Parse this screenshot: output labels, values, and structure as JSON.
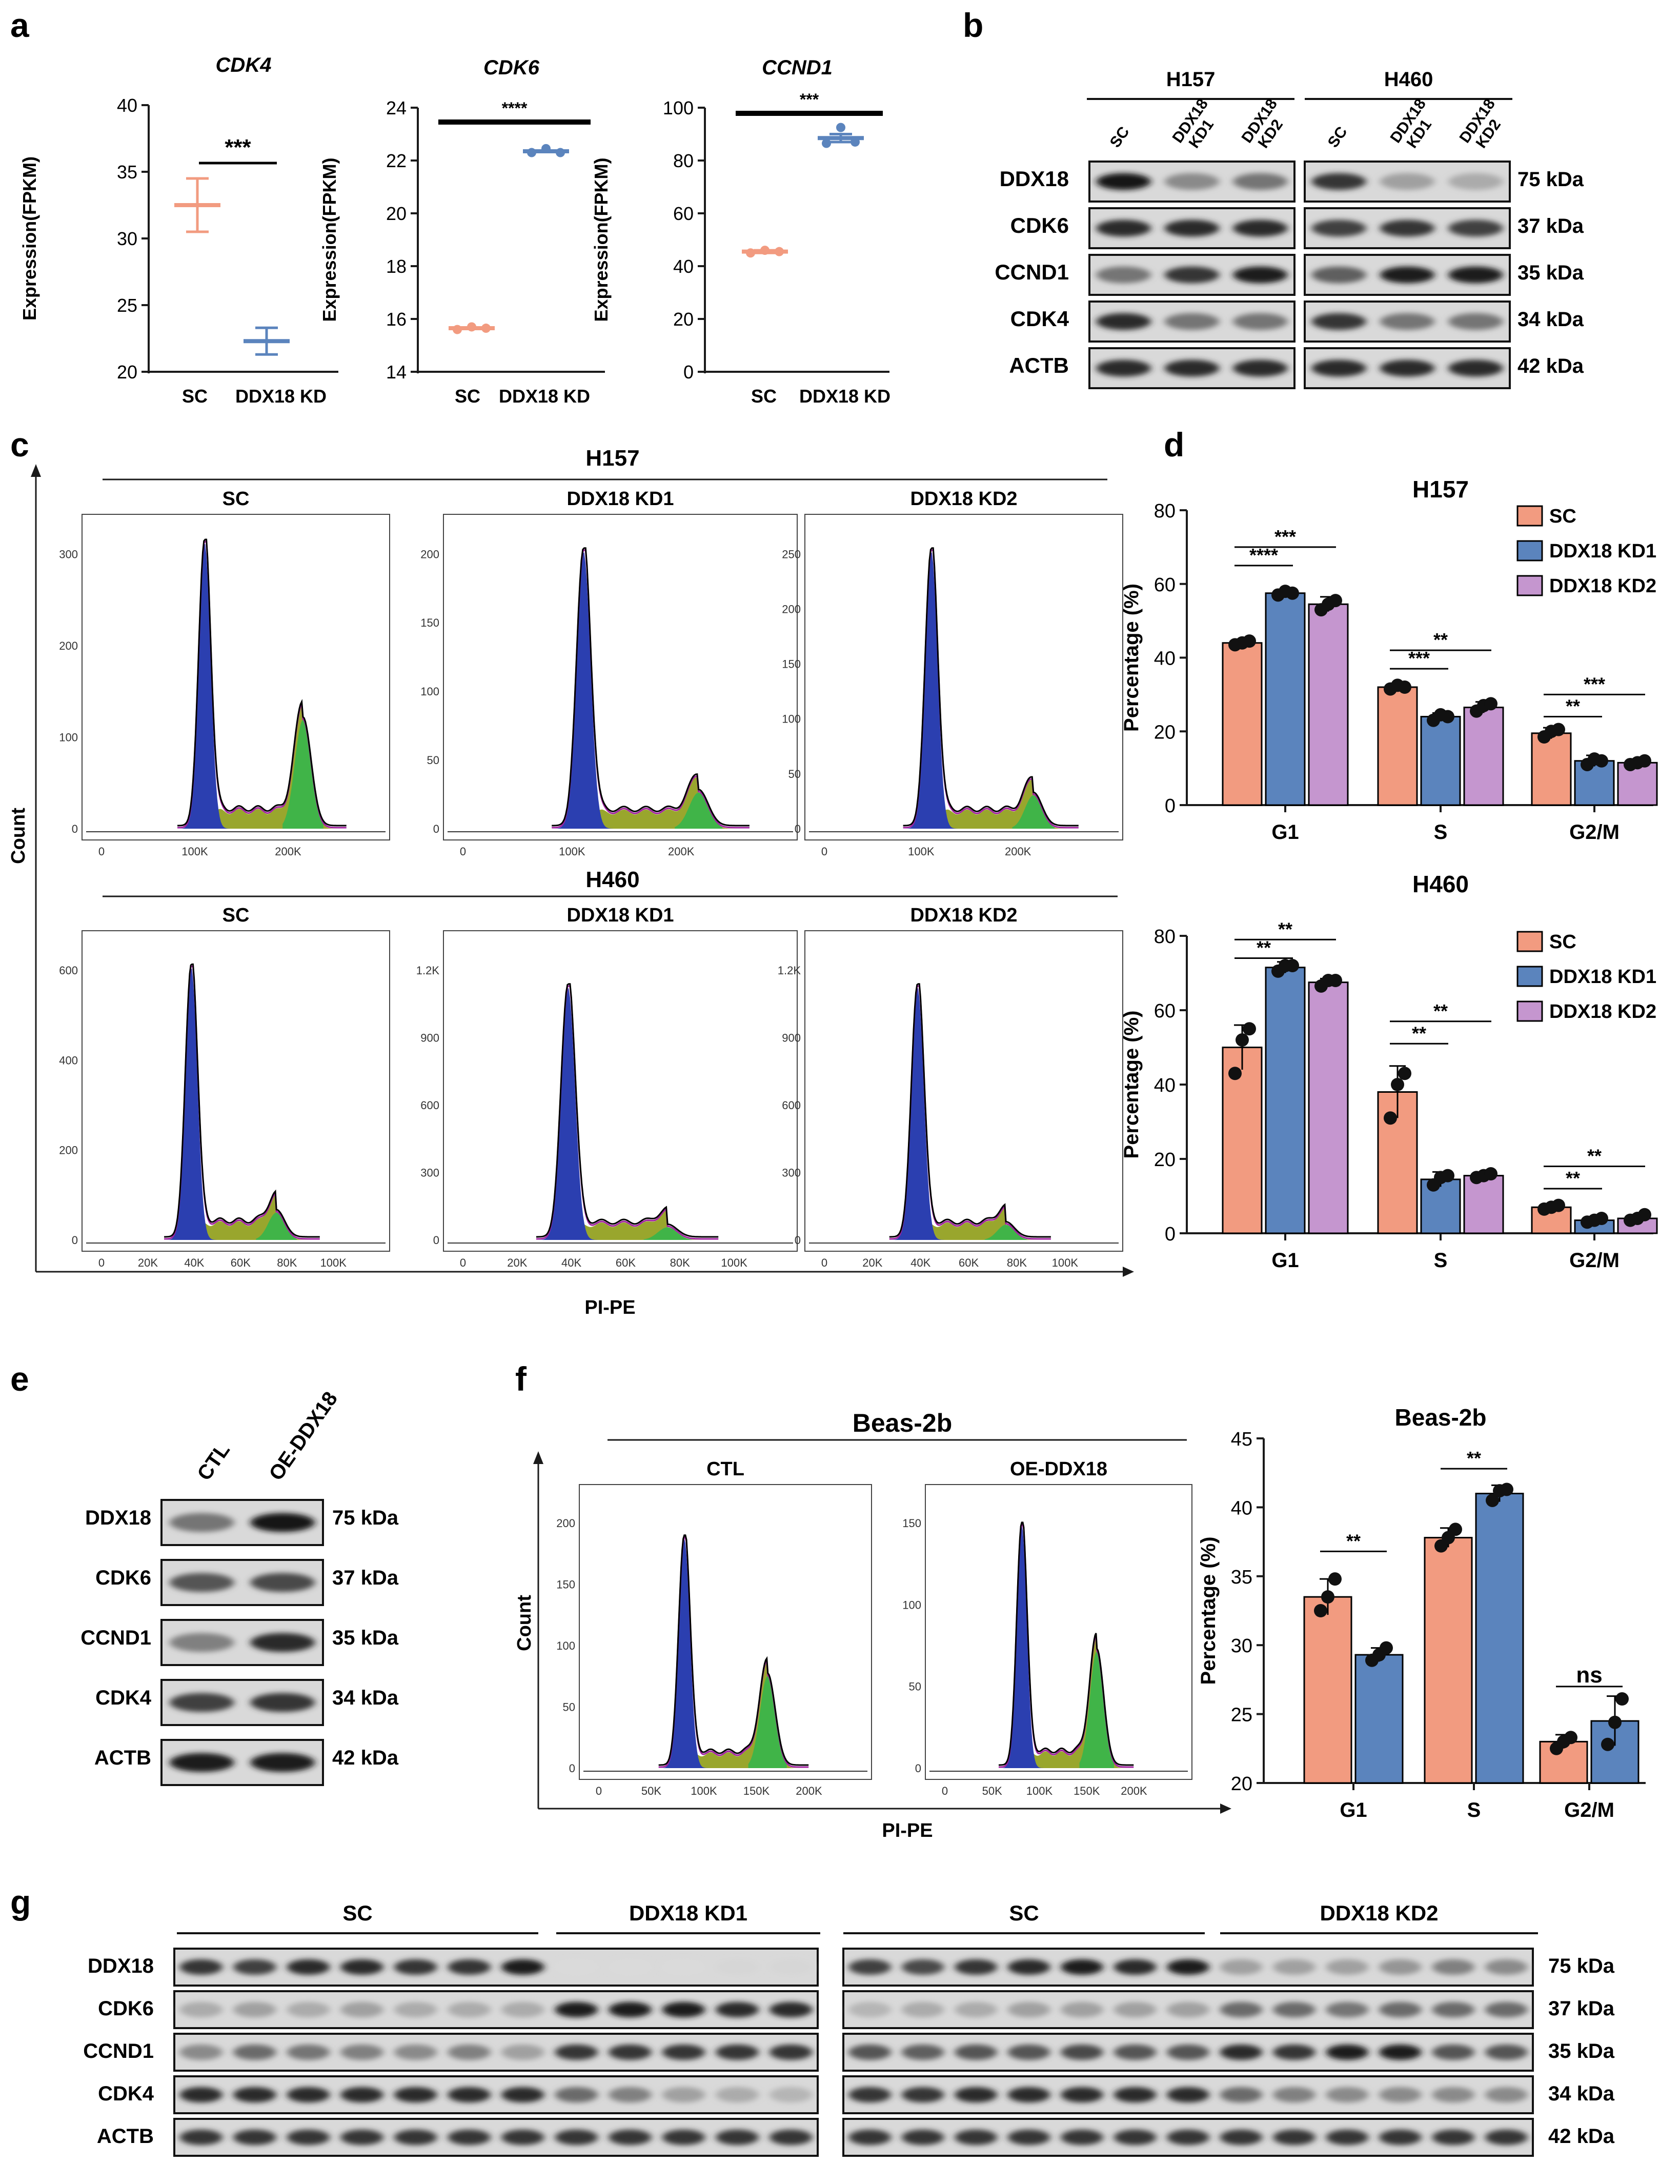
{
  "colors": {
    "sc": "#f29b80",
    "kd1": "#5b84bd",
    "kd2": "#c596cf",
    "axis": "#1a1a1a",
    "hist_outline": "#000000",
    "hist_g1": "#2b3fb0",
    "hist_s": "#8e9c16",
    "hist_g2": "#3bb44a",
    "hist_fit": "#a020a0"
  },
  "panel_letters": [
    "a",
    "b",
    "c",
    "d",
    "e",
    "f",
    "g"
  ],
  "chart_data": [
    {
      "id": "a1",
      "type": "scatter",
      "title": "CDK4",
      "ylabel": "Expression(FPKM)",
      "categories": [
        "SC",
        "DDX18 KD"
      ],
      "ylim": [
        20,
        40
      ],
      "yticks": [
        20,
        25,
        30,
        35,
        40
      ],
      "groups": [
        {
          "mean": 32.5,
          "sd": 2.0,
          "points": []
        },
        {
          "mean": 22.3,
          "sd": 1.0,
          "points": []
        }
      ],
      "sig": [
        {
          "label": "***",
          "from": 0,
          "to": 1
        }
      ]
    },
    {
      "id": "a2",
      "type": "scatter",
      "title": "CDK6",
      "ylabel": "Expression(FPKM)",
      "categories": [
        "SC",
        "DDX18 KD"
      ],
      "ylim": [
        14,
        24
      ],
      "yticks": [
        14,
        16,
        18,
        20,
        22,
        24
      ],
      "groups": [
        {
          "mean": 15.65,
          "sd": 0.05,
          "points": [
            15.6,
            15.7,
            15.65
          ]
        },
        {
          "mean": 22.35,
          "sd": 0.1,
          "points": [
            22.3,
            22.45,
            22.3
          ]
        }
      ],
      "sig": [
        {
          "label": "****",
          "from": 0,
          "to": 1
        }
      ]
    },
    {
      "id": "a3",
      "type": "scatter",
      "title": "CCND1",
      "ylabel": "Expression(FPKM)",
      "categories": [
        "SC",
        "DDX18 KD"
      ],
      "ylim": [
        0,
        100
      ],
      "yticks": [
        0,
        20,
        40,
        60,
        80,
        100
      ],
      "groups": [
        {
          "mean": 45.5,
          "sd": 0.5,
          "points": [
            45,
            46,
            45.5
          ]
        },
        {
          "mean": 88.5,
          "sd": 1.5,
          "points": [
            86.5,
            92.5,
            87
          ]
        }
      ],
      "sig": [
        {
          "label": "***",
          "from": 0,
          "to": 1
        }
      ]
    },
    {
      "id": "d1",
      "type": "bar",
      "title": "H157",
      "ylabel": "Percentage (%)",
      "categories": [
        "G1",
        "S",
        "G2/M"
      ],
      "ylim": [
        0,
        80
      ],
      "yticks": [
        0,
        20,
        40,
        60,
        80
      ],
      "series": [
        {
          "name": "SC",
          "values": [
            44,
            32,
            19.5
          ],
          "sd": [
            1,
            1,
            1.5
          ],
          "points": [
            [
              43.5,
              44,
              44.5
            ],
            [
              31.5,
              32.5,
              32
            ],
            [
              18.5,
              20,
              20.5
            ]
          ]
        },
        {
          "name": "DDX18 KD1",
          "values": [
            57.5,
            24,
            12
          ],
          "sd": [
            1,
            1,
            1.5
          ],
          "points": [
            [
              57,
              58,
              57.5
            ],
            [
              23,
              24.5,
              24
            ],
            [
              11,
              12.5,
              12
            ]
          ]
        },
        {
          "name": "DDX18 KD2",
          "values": [
            54.5,
            26.5,
            11.5
          ],
          "sd": [
            2,
            1.5,
            0.5
          ],
          "points": [
            [
              53,
              54.5,
              55.5
            ],
            [
              25.5,
              27,
              27.5
            ],
            [
              11,
              11.5,
              12
            ]
          ]
        }
      ],
      "sig": [
        {
          "label": "****",
          "cat": 0,
          "from": 0,
          "to": 1,
          "y": 65
        },
        {
          "label": "***",
          "cat": 0,
          "from": 0,
          "to": 2,
          "y": 70
        },
        {
          "label": "***",
          "cat": 1,
          "from": 0,
          "to": 1,
          "y": 37
        },
        {
          "label": "**",
          "cat": 1,
          "from": 0,
          "to": 2,
          "y": 42
        },
        {
          "label": "**",
          "cat": 2,
          "from": 0,
          "to": 1,
          "y": 24
        },
        {
          "label": "***",
          "cat": 2,
          "from": 0,
          "to": 2,
          "y": 30
        }
      ]
    },
    {
      "id": "d2",
      "type": "bar",
      "title": "H460",
      "ylabel": "Percentage (%)",
      "categories": [
        "G1",
        "S",
        "G2/M"
      ],
      "ylim": [
        0,
        80
      ],
      "yticks": [
        0,
        20,
        40,
        60,
        80
      ],
      "series": [
        {
          "name": "SC",
          "values": [
            50,
            38,
            7
          ],
          "sd": [
            6,
            7,
            1
          ],
          "points": [
            [
              43,
              52,
              55
            ],
            [
              31,
              40,
              43
            ],
            [
              6.5,
              7,
              7.5
            ]
          ]
        },
        {
          "name": "DDX18 KD1",
          "values": [
            71.5,
            14.5,
            3.5
          ],
          "sd": [
            1.5,
            2,
            0.5
          ],
          "points": [
            [
              70.5,
              72,
              72
            ],
            [
              13,
              15,
              15.5
            ],
            [
              3,
              3.5,
              4
            ]
          ]
        },
        {
          "name": "DDX18 KD2",
          "values": [
            67.5,
            15.5,
            4
          ],
          "sd": [
            1,
            0.5,
            1
          ],
          "points": [
            [
              66.5,
              68,
              68
            ],
            [
              15,
              15.5,
              16
            ],
            [
              3.5,
              4,
              5
            ]
          ]
        }
      ],
      "sig": [
        {
          "label": "**",
          "cat": 0,
          "from": 0,
          "to": 1,
          "y": 74
        },
        {
          "label": "**",
          "cat": 0,
          "from": 0,
          "to": 2,
          "y": 79
        },
        {
          "label": "**",
          "cat": 1,
          "from": 0,
          "to": 1,
          "y": 51
        },
        {
          "label": "**",
          "cat": 1,
          "from": 0,
          "to": 2,
          "y": 57
        },
        {
          "label": "**",
          "cat": 2,
          "from": 0,
          "to": 1,
          "y": 12
        },
        {
          "label": "**",
          "cat": 2,
          "from": 0,
          "to": 2,
          "y": 18
        }
      ]
    },
    {
      "id": "f2",
      "type": "bar",
      "title": "Beas-2b",
      "ylabel": "Percentage (%)",
      "categories": [
        "G1",
        "S",
        "G2/M"
      ],
      "ylim": [
        20,
        45
      ],
      "yticks": [
        20,
        25,
        30,
        35,
        40,
        45
      ],
      "series": [
        {
          "name": "CTL",
          "values": [
            33.5,
            37.8,
            23
          ],
          "sd": [
            1.3,
            0.7,
            0.5
          ],
          "points": [
            [
              32.5,
              33.5,
              34.8
            ],
            [
              37.2,
              37.8,
              38.4
            ],
            [
              22.5,
              23,
              23.3
            ]
          ]
        },
        {
          "name": "OE-DDX18",
          "values": [
            29.3,
            41,
            24.5
          ],
          "sd": [
            0.5,
            0.6,
            1.8
          ],
          "points": [
            [
              28.9,
              29.3,
              29.8
            ],
            [
              40.5,
              41.2,
              41.3
            ],
            [
              22.8,
              24.4,
              26.1
            ]
          ]
        }
      ],
      "sig": [
        {
          "label": "**",
          "cat": 0,
          "from": 0,
          "to": 1,
          "y": 36.8
        },
        {
          "label": "**",
          "cat": 1,
          "from": 0,
          "to": 1,
          "y": 42.8
        },
        {
          "label": "ns",
          "cat": 2,
          "from": 0,
          "to": 1,
          "y": 27
        }
      ]
    }
  ],
  "flow": {
    "c_title_top": "H157",
    "c_title_bottom": "H460",
    "f_title": "Beas-2b",
    "count_label": "Count",
    "x_label": "PI-PE",
    "h157": [
      {
        "label": "SC",
        "xticks": [
          "0",
          "100K",
          "200K"
        ],
        "yticks": [
          "0",
          "100",
          "200",
          "300"
        ],
        "g1": 1.0,
        "g2": 0.38,
        "ptop": 1.0
      },
      {
        "label": "DDX18 KD1",
        "xticks": [
          "0",
          "100K",
          "200K"
        ],
        "yticks": [
          "0",
          "50",
          "100",
          "150",
          "200"
        ],
        "g1": 1.0,
        "g2": 0.13,
        "ptop": 0.97
      },
      {
        "label": "DDX18 KD2",
        "xticks": [
          "0",
          "100K",
          "200K"
        ],
        "yticks": [
          "0",
          "50",
          "100",
          "150",
          "200",
          "250"
        ],
        "g1": 1.0,
        "g2": 0.12,
        "ptop": 0.97
      }
    ],
    "h460": [
      {
        "label": "SC",
        "xticks": [
          "0",
          "20K",
          "40K",
          "60K",
          "80K",
          "100K"
        ],
        "yticks": [
          "0",
          "200",
          "400",
          "600"
        ],
        "g1": 1.0,
        "g2": 0.1,
        "ptop": 0.97
      },
      {
        "label": "DDX18 KD1",
        "xticks": [
          "0",
          "20K",
          "40K",
          "60K",
          "80K",
          "100K"
        ],
        "yticks": [
          "0",
          "300",
          "600",
          "900",
          "1.2K"
        ],
        "g1": 1.0,
        "g2": 0.05,
        "ptop": 0.9
      },
      {
        "label": "DDX18 KD2",
        "xticks": [
          "0",
          "20K",
          "40K",
          "60K",
          "80K",
          "100K"
        ],
        "yticks": [
          "0",
          "300",
          "600",
          "900",
          "1.2K"
        ],
        "g1": 1.0,
        "g2": 0.06,
        "ptop": 0.9
      }
    ],
    "beas": [
      {
        "label": "CTL",
        "xticks": [
          "0",
          "50K",
          "100K",
          "150K",
          "200K"
        ],
        "yticks": [
          "0",
          "50",
          "100",
          "150",
          "200"
        ],
        "g1": 1.0,
        "g2": 0.4,
        "ptop": 0.9
      },
      {
        "label": "OE-DDX18",
        "xticks": [
          "0",
          "50K",
          "100K",
          "150K",
          "200K"
        ],
        "yticks": [
          "0",
          "50",
          "100",
          "150"
        ],
        "g1": 1.0,
        "g2": 0.48,
        "ptop": 0.95
      }
    ]
  },
  "blots": {
    "b": {
      "groups": [
        "H157",
        "H460"
      ],
      "lanes": [
        "SC",
        "DDX18 KD1",
        "DDX18 KD2"
      ],
      "rows": [
        {
          "name": "DDX18",
          "kda": "75 kDa",
          "h157": [
            1,
            0.45,
            0.55
          ],
          "h460": [
            0.85,
            0.35,
            0.3
          ]
        },
        {
          "name": "CDK6",
          "kda": "37 kDa",
          "h157": [
            0.9,
            0.9,
            0.9
          ],
          "h460": [
            0.8,
            0.85,
            0.8
          ]
        },
        {
          "name": "CCND1",
          "kda": "35 kDa",
          "h157": [
            0.55,
            0.85,
            0.95
          ],
          "h460": [
            0.65,
            0.95,
            0.95
          ]
        },
        {
          "name": "CDK4",
          "kda": "34 kDa",
          "h157": [
            0.9,
            0.55,
            0.55
          ],
          "h460": [
            0.85,
            0.55,
            0.55
          ]
        },
        {
          "name": "ACTB",
          "kda": "42 kDa",
          "h157": [
            0.9,
            0.9,
            0.9
          ],
          "h460": [
            0.9,
            0.9,
            0.9
          ]
        }
      ]
    },
    "e": {
      "lanes": [
        "CTL",
        "OE-DDX18"
      ],
      "rows": [
        {
          "name": "DDX18",
          "kda": "75 kDa",
          "v": [
            0.55,
            1
          ]
        },
        {
          "name": "CDK6",
          "kda": "37 kDa",
          "v": [
            0.7,
            0.75
          ]
        },
        {
          "name": "CCND1",
          "kda": "35 kDa",
          "v": [
            0.5,
            0.9
          ]
        },
        {
          "name": "CDK4",
          "kda": "34 kDa",
          "v": [
            0.8,
            0.85
          ]
        },
        {
          "name": "ACTB",
          "kda": "42 kDa",
          "v": [
            0.95,
            0.95
          ]
        }
      ]
    },
    "g": {
      "headers": [
        "SC",
        "DDX18 KD1",
        "SC",
        "DDX18 KD2"
      ],
      "rows": [
        {
          "name": "DDX18",
          "kda": "75 kDa",
          "left": [
            0.85,
            0.8,
            0.9,
            0.9,
            0.85,
            0.85,
            0.95,
            0.08,
            0.08,
            0.08,
            0.1,
            0.1
          ],
          "right": [
            0.8,
            0.75,
            0.85,
            0.9,
            0.95,
            0.9,
            0.95,
            0.35,
            0.35,
            0.35,
            0.4,
            0.5,
            0.45
          ]
        },
        {
          "name": "CDK6",
          "kda": "37 kDa",
          "left": [
            0.3,
            0.35,
            0.3,
            0.35,
            0.3,
            0.3,
            0.3,
            0.95,
            0.95,
            0.95,
            0.9,
            0.9
          ],
          "right": [
            0.25,
            0.3,
            0.3,
            0.35,
            0.35,
            0.35,
            0.35,
            0.6,
            0.6,
            0.55,
            0.6,
            0.6,
            0.6
          ]
        },
        {
          "name": "CCND1",
          "kda": "35 kDa",
          "left": [
            0.45,
            0.6,
            0.55,
            0.5,
            0.45,
            0.5,
            0.35,
            0.85,
            0.85,
            0.85,
            0.85,
            0.85
          ],
          "right": [
            0.7,
            0.65,
            0.7,
            0.7,
            0.75,
            0.7,
            0.7,
            0.9,
            0.85,
            0.95,
            0.95,
            0.7,
            0.7
          ]
        },
        {
          "name": "CDK4",
          "kda": "34 kDa",
          "left": [
            0.9,
            0.9,
            0.9,
            0.9,
            0.9,
            0.9,
            0.9,
            0.6,
            0.5,
            0.35,
            0.3,
            0.25
          ],
          "right": [
            0.85,
            0.85,
            0.9,
            0.9,
            0.9,
            0.9,
            0.9,
            0.6,
            0.5,
            0.45,
            0.45,
            0.45,
            0.45
          ]
        },
        {
          "name": "ACTB",
          "kda": "42 kDa",
          "left": [
            0.85,
            0.85,
            0.85,
            0.85,
            0.85,
            0.85,
            0.85,
            0.85,
            0.85,
            0.85,
            0.85,
            0.85
          ],
          "right": [
            0.85,
            0.85,
            0.85,
            0.85,
            0.85,
            0.85,
            0.85,
            0.85,
            0.85,
            0.85,
            0.85,
            0.85,
            0.85
          ]
        }
      ]
    }
  }
}
